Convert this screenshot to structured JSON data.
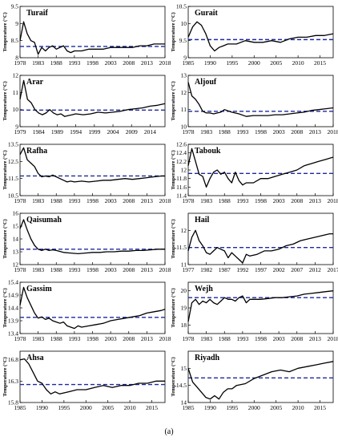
{
  "figure": {
    "caption": "(a)"
  },
  "colors": {
    "line": "#000000",
    "mean_line": "#1f2a9c",
    "axis": "#000000"
  },
  "chart_data": [
    {
      "type": "line",
      "station": "Turaif",
      "ylabel": "Temperature (°C)",
      "ylim": [
        8,
        9.5
      ],
      "yticks": [
        8,
        8.5,
        9,
        9.5
      ],
      "yticklabels": [
        "8",
        "8.5",
        "9",
        "9.5"
      ],
      "xlim": [
        1978,
        2018
      ],
      "xticks": [
        1978,
        1983,
        1988,
        1993,
        1998,
        2003,
        2008,
        2013,
        2018
      ],
      "mean": 8.33,
      "x": [
        1978,
        1979,
        1980,
        1981,
        1982,
        1983,
        1984,
        1985,
        1986,
        1987,
        1988,
        1989,
        1990,
        1991,
        1992,
        1993,
        1995,
        1997,
        1999,
        2001,
        2003,
        2005,
        2007,
        2009,
        2011,
        2013,
        2015,
        2017,
        2018
      ],
      "y": [
        8.5,
        9.05,
        8.7,
        8.5,
        8.45,
        8.1,
        8.3,
        8.2,
        8.3,
        8.35,
        8.25,
        8.3,
        8.35,
        8.2,
        8.15,
        8.2,
        8.2,
        8.25,
        8.25,
        8.25,
        8.3,
        8.3,
        8.3,
        8.3,
        8.35,
        8.35,
        8.4,
        8.4,
        8.4
      ]
    },
    {
      "type": "line",
      "station": "Gurait",
      "ylabel": "Temperature (°C)",
      "ylim": [
        9,
        10.5
      ],
      "yticks": [
        9,
        9.5,
        10,
        10.5
      ],
      "yticklabels": [
        "9",
        "9.5",
        "10",
        "10.5"
      ],
      "xlim": [
        1985,
        2018
      ],
      "xticks": [
        1985,
        1990,
        1995,
        2000,
        2005,
        2010,
        2015
      ],
      "mean": 9.53,
      "x": [
        1985,
        1986,
        1987,
        1988,
        1989,
        1990,
        1991,
        1992,
        1993,
        1994,
        1996,
        1998,
        2000,
        2002,
        2004,
        2006,
        2008,
        2010,
        2012,
        2014,
        2016,
        2018
      ],
      "y": [
        9.6,
        9.9,
        10.05,
        9.95,
        9.7,
        9.35,
        9.2,
        9.3,
        9.35,
        9.4,
        9.4,
        9.5,
        9.45,
        9.45,
        9.5,
        9.45,
        9.55,
        9.6,
        9.6,
        9.65,
        9.65,
        9.7
      ]
    },
    {
      "type": "line",
      "station": "Arar",
      "ylabel": "Temperature (°C)",
      "ylim": [
        9,
        12
      ],
      "yticks": [
        9,
        10,
        11,
        12
      ],
      "yticklabels": [
        "9",
        "10",
        "11",
        "12"
      ],
      "xlim": [
        1979,
        2018
      ],
      "xticks": [
        1979,
        1984,
        1989,
        1994,
        1999,
        2004,
        2009,
        2014
      ],
      "mean": 9.97,
      "x": [
        1979,
        1980,
        1981,
        1982,
        1983,
        1984,
        1985,
        1986,
        1987,
        1988,
        1989,
        1990,
        1991,
        1992,
        1993,
        1994,
        1996,
        1998,
        2000,
        2002,
        2004,
        2006,
        2008,
        2010,
        2012,
        2014,
        2016,
        2018
      ],
      "y": [
        10.6,
        11.7,
        10.6,
        10.4,
        10,
        9.8,
        9.7,
        9.8,
        10,
        9.8,
        9.7,
        9.75,
        9.6,
        9.65,
        9.7,
        9.75,
        9.7,
        9.75,
        9.85,
        9.8,
        9.85,
        9.9,
        10,
        10.05,
        10.1,
        10.2,
        10.25,
        10.35
      ]
    },
    {
      "type": "line",
      "station": "Aljouf",
      "ylabel": "Temperature (°C)",
      "ylim": [
        10,
        13
      ],
      "yticks": [
        10,
        11,
        12,
        13
      ],
      "yticklabels": [
        "10",
        "11",
        "12",
        "13"
      ],
      "xlim": [
        1978,
        2018
      ],
      "xticks": [
        1978,
        1983,
        1988,
        1993,
        1998,
        2003,
        2008,
        2013,
        2018
      ],
      "mean": 10.9,
      "x": [
        1978,
        1979,
        1980,
        1981,
        1982,
        1983,
        1984,
        1985,
        1986,
        1987,
        1988,
        1990,
        1992,
        1994,
        1996,
        1998,
        2000,
        2002,
        2004,
        2006,
        2008,
        2010,
        2012,
        2014,
        2016,
        2018
      ],
      "y": [
        12.6,
        11.8,
        11.6,
        11.3,
        10.9,
        10.8,
        10.8,
        10.75,
        10.8,
        10.85,
        11,
        10.85,
        10.75,
        10.6,
        10.65,
        10.65,
        10.65,
        10.7,
        10.7,
        10.75,
        10.8,
        10.85,
        10.95,
        11,
        11.05,
        11.1
      ]
    },
    {
      "type": "line",
      "station": "Rafha",
      "ylabel": "Temperature (°C)",
      "ylim": [
        10.5,
        13.5
      ],
      "yticks": [
        10.5,
        11.5,
        12.5,
        13.5
      ],
      "yticklabels": [
        "10.5",
        "11.5",
        "12.5",
        "13.5"
      ],
      "xlim": [
        1978,
        2018
      ],
      "xticks": [
        1978,
        1983,
        1988,
        1993,
        1998,
        2003,
        2008,
        2013,
        2018
      ],
      "mean": 11.65,
      "x": [
        1978,
        1979,
        1980,
        1981,
        1982,
        1983,
        1984,
        1985,
        1986,
        1987,
        1988,
        1989,
        1990,
        1991,
        1992,
        1993,
        1995,
        1997,
        1999,
        2001,
        2003,
        2005,
        2007,
        2009,
        2011,
        2013,
        2015,
        2017,
        2018
      ],
      "y": [
        12.9,
        13.3,
        12.6,
        12.4,
        12.2,
        11.8,
        11.6,
        11.65,
        11.6,
        11.7,
        11.6,
        11.5,
        11.4,
        11.3,
        11.35,
        11.3,
        11.35,
        11.3,
        11.35,
        11.4,
        11.4,
        11.45,
        11.5,
        11.45,
        11.5,
        11.55,
        11.6,
        11.65,
        11.65
      ]
    },
    {
      "type": "line",
      "station": "Tabouk",
      "ylabel": "Temperature (°C)",
      "ylim": [
        11.4,
        12.6
      ],
      "yticks": [
        11.4,
        11.6,
        11.8,
        12,
        12.2,
        12.4,
        12.6
      ],
      "yticklabels": [
        "11.4",
        "11.6",
        "11.8",
        "12",
        "12.2",
        "12.4",
        "12.6"
      ],
      "xlim": [
        1978,
        2018
      ],
      "xticks": [
        1978,
        1983,
        1988,
        1993,
        1998,
        2003,
        2008,
        2013,
        2018
      ],
      "mean": 11.92,
      "x": [
        1978,
        1979,
        1980,
        1981,
        1982,
        1983,
        1984,
        1985,
        1986,
        1987,
        1988,
        1989,
        1990,
        1991,
        1992,
        1993,
        1994,
        1996,
        1998,
        2000,
        2002,
        2004,
        2006,
        2008,
        2010,
        2012,
        2014,
        2016,
        2018
      ],
      "y": [
        12.1,
        12.5,
        12.2,
        11.9,
        11.85,
        11.6,
        11.8,
        11.95,
        12,
        11.9,
        11.95,
        11.8,
        11.7,
        11.95,
        11.75,
        11.65,
        11.7,
        11.7,
        11.8,
        11.8,
        11.85,
        11.9,
        11.95,
        12,
        12.1,
        12.15,
        12.2,
        12.25,
        12.3
      ]
    },
    {
      "type": "line",
      "station": "Qaisumah",
      "ylabel": "Temperature (°C)",
      "ylim": [
        12,
        16
      ],
      "yticks": [
        12,
        13,
        14,
        15,
        16
      ],
      "yticklabels": [
        "12",
        "13",
        "14",
        "15",
        "16"
      ],
      "xlim": [
        1978,
        2018
      ],
      "xticks": [
        1978,
        1983,
        1988,
        1993,
        1998,
        2003,
        2008,
        2013,
        2018
      ],
      "mean": 13.2,
      "x": [
        1978,
        1979,
        1980,
        1981,
        1982,
        1983,
        1984,
        1985,
        1986,
        1987,
        1988,
        1990,
        1992,
        1994,
        1996,
        1998,
        2000,
        2002,
        2004,
        2006,
        2008,
        2010,
        2012,
        2014,
        2016,
        2018
      ],
      "y": [
        14.8,
        15.5,
        14.7,
        14,
        13.5,
        13.2,
        13.1,
        13.2,
        13.1,
        13.15,
        13.1,
        12.95,
        12.9,
        12.85,
        12.9,
        12.95,
        12.95,
        13,
        13,
        13.05,
        13.05,
        13.1,
        13.1,
        13.15,
        13.2,
        13.2
      ]
    },
    {
      "type": "line",
      "station": "Hail",
      "ylabel": "Temperature (°C)",
      "ylim": [
        11,
        12.5
      ],
      "yticks": [
        11,
        11.5,
        12
      ],
      "yticklabels": [
        "11",
        "11.5",
        "12"
      ],
      "xlim": [
        1977,
        2017
      ],
      "xticks": [
        1977,
        1982,
        1987,
        1992,
        1997,
        2002,
        2007,
        2012,
        2017
      ],
      "mean": 11.5,
      "x": [
        1977,
        1978,
        1979,
        1980,
        1981,
        1982,
        1983,
        1984,
        1985,
        1986,
        1987,
        1988,
        1989,
        1990,
        1991,
        1992,
        1993,
        1994,
        1996,
        1998,
        2000,
        2002,
        2004,
        2006,
        2008,
        2010,
        2012,
        2014,
        2016,
        2017
      ],
      "y": [
        11.4,
        11.8,
        12,
        11.7,
        11.55,
        11.35,
        11.3,
        11.4,
        11.5,
        11.45,
        11.4,
        11.2,
        11.35,
        11.25,
        11.15,
        11.05,
        11.3,
        11.25,
        11.3,
        11.4,
        11.4,
        11.45,
        11.55,
        11.6,
        11.7,
        11.75,
        11.8,
        11.85,
        11.9,
        11.9
      ]
    },
    {
      "type": "line",
      "station": "Gassim",
      "ylabel": "Temperature (°C)",
      "ylim": [
        13.4,
        15.4
      ],
      "yticks": [
        13.4,
        13.9,
        14.4,
        14.9,
        15.4
      ],
      "yticklabels": [
        "13.4",
        "13.9",
        "14.4",
        "14.9",
        "15.4"
      ],
      "xlim": [
        1978,
        2018
      ],
      "xticks": [
        1978,
        1983,
        1988,
        1993,
        1998,
        2003,
        2008,
        2013,
        2018
      ],
      "mean": 14.03,
      "x": [
        1978,
        1979,
        1980,
        1981,
        1982,
        1983,
        1984,
        1985,
        1986,
        1987,
        1988,
        1989,
        1990,
        1991,
        1992,
        1993,
        1994,
        1995,
        1997,
        1999,
        2001,
        2003,
        2005,
        2007,
        2009,
        2011,
        2013,
        2015,
        2017,
        2018
      ],
      "y": [
        14.5,
        15.2,
        14.8,
        14.5,
        14.2,
        14,
        14.05,
        13.95,
        14,
        13.9,
        13.85,
        13.8,
        13.85,
        13.7,
        13.65,
        13.6,
        13.7,
        13.65,
        13.7,
        13.75,
        13.8,
        13.9,
        13.95,
        14,
        14.05,
        14.1,
        14.2,
        14.25,
        14.3,
        14.35
      ]
    },
    {
      "type": "line",
      "station": "Wejh",
      "ylabel": "Temperature (°C)",
      "ylim": [
        17.5,
        20.5
      ],
      "yticks": [
        18,
        19,
        20
      ],
      "yticklabels": [
        "18",
        "19",
        "20"
      ],
      "xlim": [
        1978,
        2018
      ],
      "xticks": [
        1978,
        1983,
        1988,
        1993,
        1998,
        2003,
        2008,
        2013,
        2018
      ],
      "mean": 19.6,
      "x": [
        1978,
        1979,
        1980,
        1981,
        1982,
        1983,
        1984,
        1985,
        1986,
        1987,
        1988,
        1989,
        1990,
        1991,
        1992,
        1993,
        1994,
        1995,
        1996,
        1998,
        2000,
        2002,
        2004,
        2006,
        2008,
        2010,
        2012,
        2014,
        2016,
        2018
      ],
      "y": [
        18.2,
        19.3,
        19.5,
        19.2,
        19.4,
        19.3,
        19.5,
        19.3,
        19.2,
        19.4,
        19.6,
        19.5,
        19.5,
        19.4,
        19.6,
        19.7,
        19.3,
        19.5,
        19.5,
        19.5,
        19.55,
        19.6,
        19.6,
        19.65,
        19.7,
        19.8,
        19.85,
        19.9,
        19.95,
        20
      ]
    },
    {
      "type": "line",
      "station": "Ahsa",
      "ylabel": "Temperature (°C)",
      "ylim": [
        15.8,
        17
      ],
      "yticks": [
        15.8,
        16.3,
        16.8
      ],
      "yticklabels": [
        "15.8",
        "16.3",
        "16.8"
      ],
      "xlim": [
        1985,
        2018
      ],
      "xticks": [
        1985,
        1990,
        1995,
        2000,
        2005,
        2010,
        2015
      ],
      "mean": 16.22,
      "x": [
        1985,
        1986,
        1987,
        1988,
        1989,
        1990,
        1991,
        1992,
        1993,
        1994,
        1996,
        1998,
        2000,
        2002,
        2004,
        2006,
        2008,
        2010,
        2012,
        2014,
        2016,
        2018
      ],
      "y": [
        16.8,
        16.82,
        16.7,
        16.5,
        16.3,
        16.25,
        16.1,
        16,
        16.05,
        16,
        16.05,
        16.1,
        16.1,
        16.15,
        16.2,
        16.15,
        16.2,
        16.2,
        16.25,
        16.25,
        16.3,
        16.3
      ]
    },
    {
      "type": "line",
      "station": "Riyadh",
      "ylabel": "Temperature (°C)",
      "ylim": [
        14,
        15.5
      ],
      "yticks": [
        14,
        14.5,
        15
      ],
      "yticklabels": [
        "14",
        "14.5",
        "15"
      ],
      "xlim": [
        1985,
        2018
      ],
      "xticks": [
        1985,
        1990,
        1995,
        2000,
        2005,
        2010,
        2015
      ],
      "mean": 14.72,
      "x": [
        1985,
        1986,
        1987,
        1988,
        1989,
        1990,
        1991,
        1992,
        1993,
        1994,
        1995,
        1996,
        1998,
        2000,
        2002,
        2004,
        2006,
        2008,
        2010,
        2012,
        2014,
        2016,
        2018
      ],
      "y": [
        15,
        14.6,
        14.45,
        14.3,
        14.15,
        14.1,
        14.2,
        14.1,
        14.3,
        14.4,
        14.4,
        14.5,
        14.55,
        14.7,
        14.8,
        14.9,
        14.95,
        14.9,
        15,
        15.05,
        15.1,
        15.15,
        15.2
      ]
    }
  ]
}
